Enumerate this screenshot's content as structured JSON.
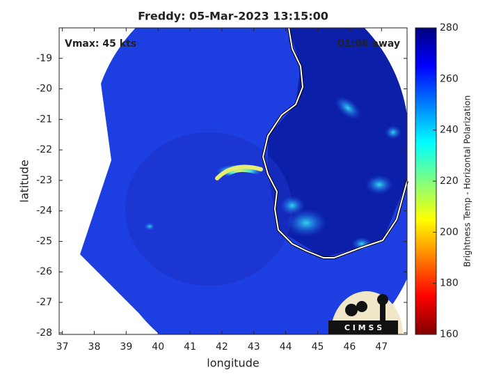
{
  "chart_data": {
    "type": "image",
    "title": "Freddy: 05-Mar-2023 13:15:00",
    "annotations": [
      "Vmax: 45 kts",
      "01:06 away"
    ],
    "xlabel": "longitude",
    "ylabel": "latitude",
    "xlim": [
      36.9,
      47.8
    ],
    "ylim": [
      -28.05,
      -18.0
    ],
    "xticks": [
      37,
      38,
      39,
      40,
      41,
      42,
      43,
      44,
      45,
      46,
      47
    ],
    "yticks": [
      -28,
      -27,
      -26,
      -25,
      -24,
      -23,
      -22,
      -21,
      -20,
      -19
    ],
    "colorbar": {
      "label": "Brightness Temp - Horizontal Polarization",
      "lim": [
        160,
        280
      ],
      "ticks": [
        160,
        180,
        200,
        220,
        240,
        260,
        280
      ]
    },
    "logo": "C I M S S"
  }
}
